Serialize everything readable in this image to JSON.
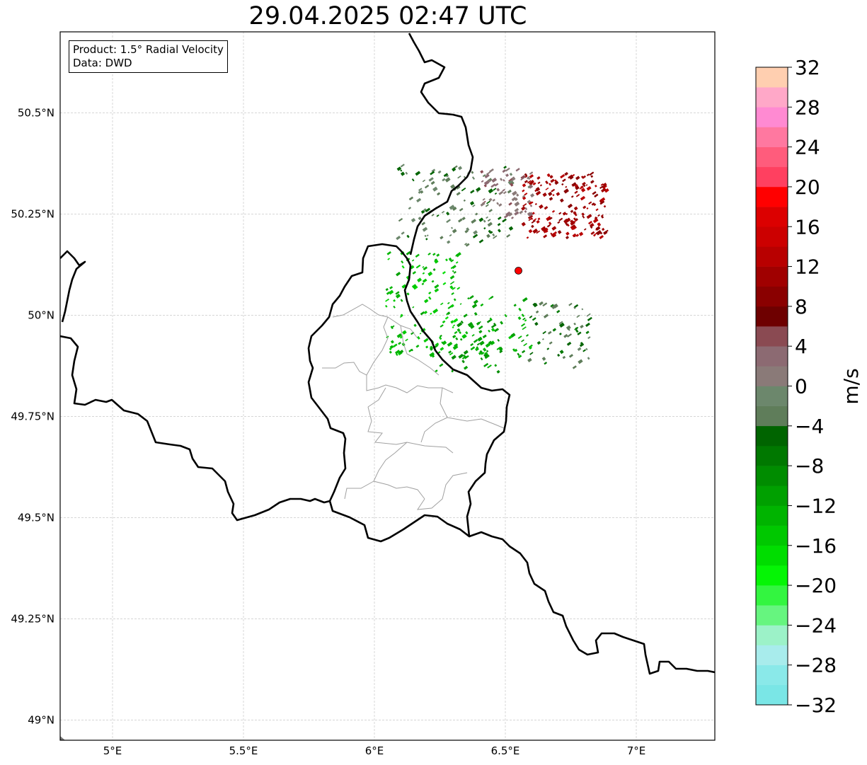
{
  "title": "29.04.2025 02:47 UTC",
  "info": {
    "product_line": "Product: 1.5° Radial Velocity",
    "data_line": "Data: DWD"
  },
  "axes": {
    "lon_ticks": [
      {
        "value": 5.0,
        "label": "5°E"
      },
      {
        "value": 5.5,
        "label": "5.5°E"
      },
      {
        "value": 6.0,
        "label": "6°E"
      },
      {
        "value": 6.5,
        "label": "6.5°E"
      },
      {
        "value": 7.0,
        "label": "7°E"
      }
    ],
    "lat_ticks": [
      {
        "value": 49.0,
        "label": "49°N"
      },
      {
        "value": 49.25,
        "label": "49.25°N"
      },
      {
        "value": 49.5,
        "label": "49.5°N"
      },
      {
        "value": 49.75,
        "label": "49.75°N"
      },
      {
        "value": 50.0,
        "label": "50°N"
      },
      {
        "value": 50.25,
        "label": "50.25°N"
      },
      {
        "value": 50.5,
        "label": "50.5°N"
      }
    ],
    "lon_range": [
      4.8,
      7.3
    ],
    "lat_range": [
      48.95,
      50.7
    ],
    "grid": true
  },
  "radar_site": {
    "lon": 6.55,
    "lat": 50.11,
    "color": "#ff0000"
  },
  "colorbar": {
    "label": "m/s",
    "min": -32,
    "max": 32,
    "tick_labels": [
      "32",
      "28",
      "24",
      "20",
      "16",
      "12",
      "8",
      "4",
      "0",
      "−4",
      "−8",
      "−12",
      "−16",
      "−20",
      "−24",
      "−28",
      "−32"
    ],
    "colors": [
      "#7ae6e6",
      "#8ae9e9",
      "#a8ecec",
      "#9cf2c8",
      "#66f57f",
      "#33f540",
      "#05f505",
      "#00dd00",
      "#00c800",
      "#00b400",
      "#00a000",
      "#008c00",
      "#007800",
      "#006400",
      "#5f7d5a",
      "#6c876c",
      "#8a7a78",
      "#8c6a72",
      "#8a4a52",
      "#6e0000",
      "#8a0000",
      "#a00000",
      "#b80000",
      "#cc0000",
      "#dc0000",
      "#ff0000",
      "#ff4060",
      "#ff5c7c",
      "#ff78a0",
      "#ff8ad2",
      "#ffa8c8",
      "#ffcfb0"
    ]
  },
  "echo_clusters": [
    {
      "lon": 6.3,
      "lat": 50.27,
      "spread": [
        0.22,
        0.1
      ],
      "velocity": -3,
      "count": 120
    },
    {
      "lon": 6.18,
      "lat": 50.03,
      "spread": [
        0.14,
        0.13
      ],
      "velocity": -14,
      "count": 140
    },
    {
      "lon": 6.35,
      "lat": 49.93,
      "spread": [
        0.12,
        0.07
      ],
      "velocity": -11,
      "count": 40
    },
    {
      "lon": 6.72,
      "lat": 50.27,
      "spread": [
        0.16,
        0.08
      ],
      "velocity": 11,
      "count": 180
    },
    {
      "lon": 6.5,
      "lat": 50.3,
      "spread": [
        0.1,
        0.06
      ],
      "velocity": 2,
      "count": 60
    },
    {
      "lon": 6.7,
      "lat": 49.95,
      "spread": [
        0.12,
        0.08
      ],
      "velocity": -4,
      "count": 60
    },
    {
      "lon": 6.45,
      "lat": 49.97,
      "spread": [
        0.14,
        0.08
      ],
      "velocity": -12,
      "count": 60
    }
  ]
}
